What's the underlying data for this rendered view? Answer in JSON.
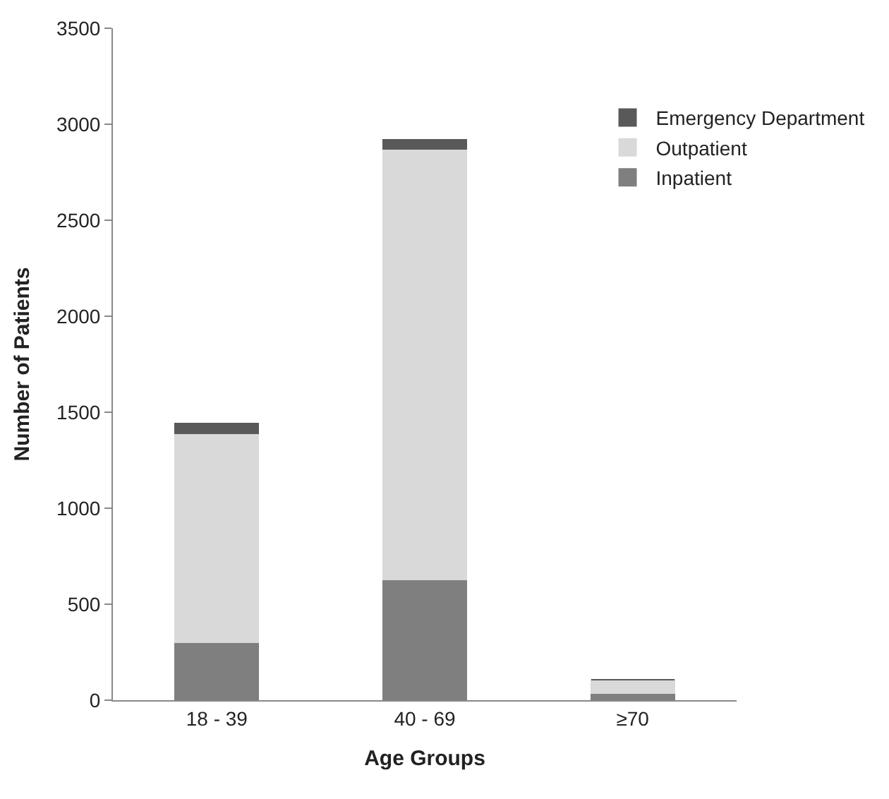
{
  "chart_data": {
    "type": "bar",
    "stacked": true,
    "xlabel": "Age Groups",
    "ylabel": "Number of Patients",
    "categories": [
      "18 - 39",
      "40 - 69",
      "≥70"
    ],
    "series": [
      {
        "name": "Inpatient",
        "color": "#7f7f7f",
        "values": [
          300,
          630,
          35
        ]
      },
      {
        "name": "Outpatient",
        "color": "#d9d9d9",
        "values": [
          1090,
          2240,
          70
        ]
      },
      {
        "name": "Emergency Department",
        "color": "#595959",
        "values": [
          50,
          50,
          0
        ]
      }
    ],
    "ylim": [
      0,
      3500
    ],
    "yticks": [
      0,
      500,
      1000,
      1500,
      2000,
      2500,
      3000,
      3500
    ],
    "grid": false,
    "legend": "top right"
  }
}
